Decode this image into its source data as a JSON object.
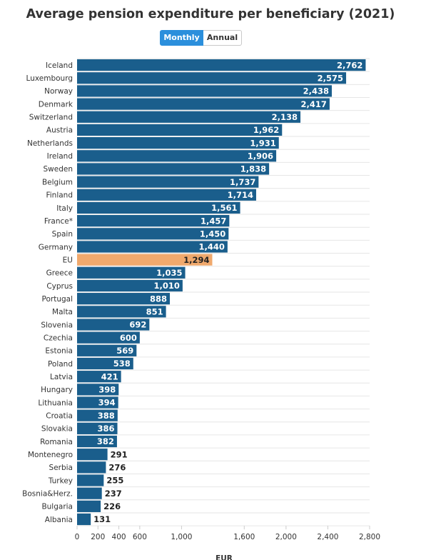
{
  "header": {
    "title": "Average pension expenditure per beneficiary (2021)",
    "toggle": {
      "monthly_label": "Monthly",
      "annual_label": "Annual",
      "selected": "Monthly"
    }
  },
  "colors": {
    "bar": "#1a5e8c",
    "highlight": "#f0a96d",
    "toggle_active": "#2b8fdc",
    "gridline": "#e6e6e6"
  },
  "chart_data": {
    "type": "bar",
    "orientation": "horizontal",
    "title": "Average pension expenditure per beneficiary (2021)",
    "xlabel": "EUR",
    "xlim": [
      0,
      2800
    ],
    "xticks": [
      0,
      200,
      400,
      600,
      1000,
      1600,
      2000,
      2400,
      2800
    ],
    "xtick_labels": [
      "0",
      "200",
      "400",
      "600",
      "1,000",
      "1,600",
      "2,000",
      "2,400",
      "2,800"
    ],
    "highlight_category": "EU",
    "categories": [
      "Iceland",
      "Luxembourg",
      "Norway",
      "Denmark",
      "Switzerland",
      "Austria",
      "Netherlands",
      "Ireland",
      "Sweden",
      "Belgium",
      "Finland",
      "Italy",
      "France*",
      "Spain",
      "Germany",
      "EU",
      "Greece",
      "Cyprus",
      "Portugal",
      "Malta",
      "Slovenia",
      "Czechia",
      "Estonia",
      "Poland",
      "Latvia",
      "Hungary",
      "Lithuania",
      "Croatia",
      "Slovakia",
      "Romania",
      "Montenegro",
      "Serbia",
      "Turkey",
      "Bosnia&Herz.",
      "Bulgaria",
      "Albania"
    ],
    "values": [
      2762,
      2575,
      2438,
      2417,
      2138,
      1962,
      1931,
      1906,
      1838,
      1737,
      1714,
      1561,
      1457,
      1450,
      1440,
      1294,
      1035,
      1010,
      888,
      851,
      692,
      600,
      569,
      538,
      421,
      398,
      394,
      388,
      386,
      382,
      291,
      276,
      255,
      237,
      226,
      131
    ],
    "value_labels": [
      "2,762",
      "2,575",
      "2,438",
      "2,417",
      "2,138",
      "1,962",
      "1,931",
      "1,906",
      "1,838",
      "1,737",
      "1,714",
      "1,561",
      "1,457",
      "1,450",
      "1,440",
      "1,294",
      "1,035",
      "1,010",
      "888",
      "851",
      "692",
      "600",
      "569",
      "538",
      "421",
      "398",
      "394",
      "388",
      "386",
      "382",
      "291",
      "276",
      "255",
      "237",
      "226",
      "131"
    ]
  }
}
